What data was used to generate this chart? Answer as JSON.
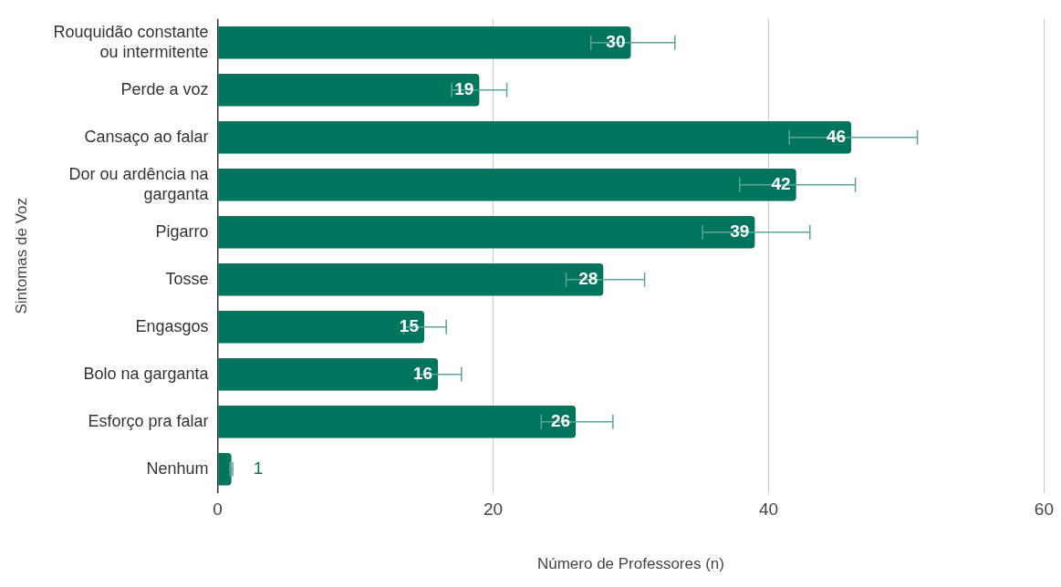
{
  "chart_data": {
    "type": "bar",
    "orientation": "horizontal",
    "xlabel": "Número de Professores (n)",
    "ylabel": "Sintomas de Voz",
    "categories": [
      "Rouquidão constante ou intermitente",
      "Perde a voz",
      "Cansaço ao falar",
      "Dor ou ardência na garganta",
      "Pigarro",
      "Tosse",
      "Engasgos",
      "Bolo na garganta",
      "Esforço pra falar",
      "Nenhum"
    ],
    "values": [
      30,
      19,
      46,
      42,
      39,
      28,
      15,
      16,
      26,
      1
    ],
    "errors": [
      [
        27.1,
        33.2
      ],
      [
        17.0,
        21.0
      ],
      [
        41.5,
        50.8
      ],
      [
        37.9,
        46.3
      ],
      [
        35.2,
        43.0
      ],
      [
        25.3,
        31.0
      ],
      [
        13.5,
        16.6
      ],
      [
        14.5,
        17.7
      ],
      [
        23.5,
        28.7
      ],
      [
        0.9,
        1.1
      ]
    ],
    "color": "#00755e",
    "xlim": [
      0,
      60
    ],
    "xticks": [
      0,
      20,
      40,
      60
    ],
    "grid": "x",
    "legend": false,
    "data_labels": true
  }
}
